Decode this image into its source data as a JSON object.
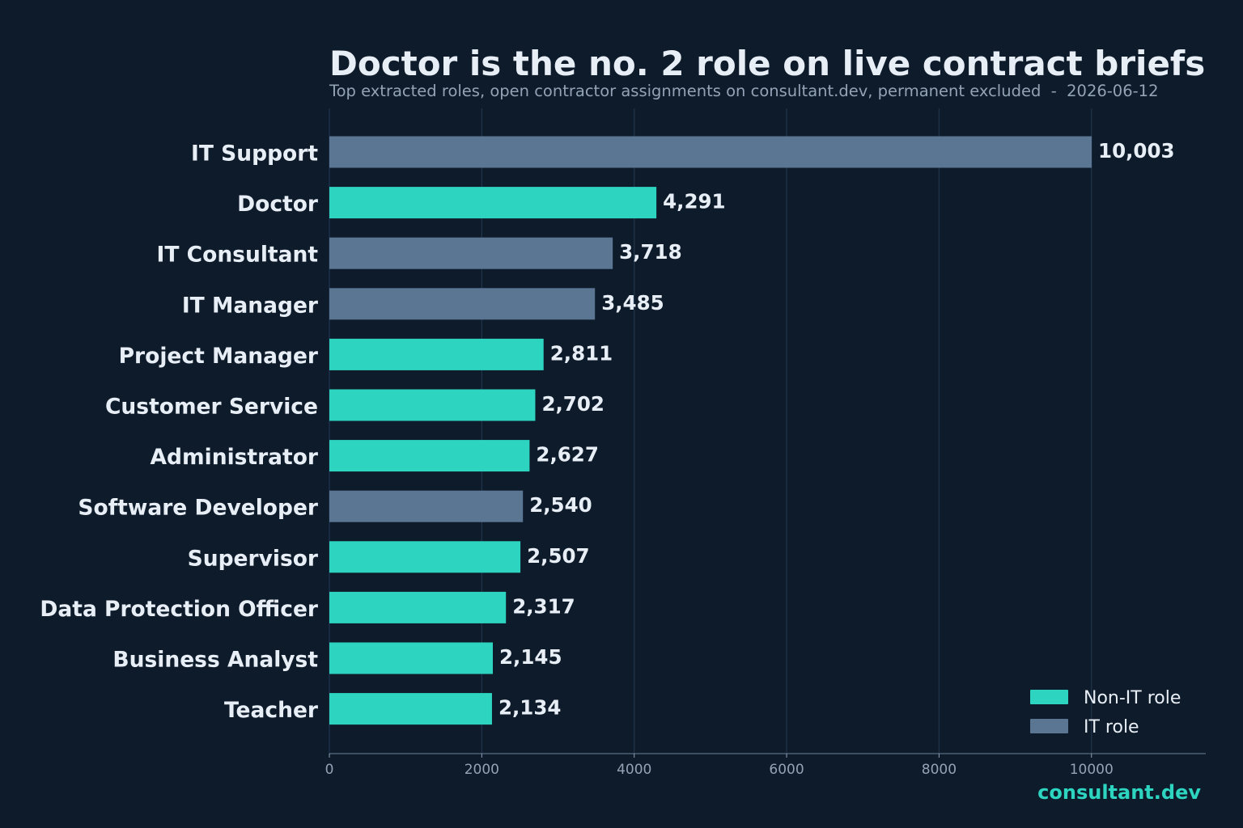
{
  "colors": {
    "background": "#0e1b2b",
    "non_it": "#2dd4bf",
    "it": "#5b7693",
    "title": "#e8eef5",
    "subtitle": "#93a3b5",
    "tick": "#93a3b5",
    "grid": "#1f334a",
    "brand": "#2dd4bf"
  },
  "chart_data": {
    "type": "bar",
    "orientation": "horizontal",
    "title": "Doctor is the no. 2 role on live contract briefs",
    "subtitle": "Top extracted roles, open contractor assignments on consultant.dev, permanent excluded  -  2026-06-12",
    "xlabel": "",
    "ylabel": "",
    "xlim": [
      0,
      11500
    ],
    "xticks": [
      0,
      2000,
      4000,
      6000,
      8000,
      10000
    ],
    "grid": "vertical",
    "legend_position": "bottom-right",
    "categories": [
      "IT Support",
      "Doctor",
      "IT Consultant",
      "IT Manager",
      "Project Manager",
      "Customer Service",
      "Administrator",
      "Software Developer",
      "Supervisor",
      "Data Protection Officer",
      "Business Analyst",
      "Teacher"
    ],
    "values": [
      10003,
      4291,
      3718,
      3485,
      2811,
      2702,
      2627,
      2540,
      2507,
      2317,
      2145,
      2134
    ],
    "value_labels": [
      "10,003",
      "4,291",
      "3,718",
      "3,485",
      "2,811",
      "2,702",
      "2,627",
      "2,540",
      "2,507",
      "2,317",
      "2,145",
      "2,134"
    ],
    "groups": [
      "IT role",
      "Non-IT role",
      "IT role",
      "IT role",
      "Non-IT role",
      "Non-IT role",
      "Non-IT role",
      "IT role",
      "Non-IT role",
      "Non-IT role",
      "Non-IT role",
      "Non-IT role"
    ],
    "legend": [
      {
        "label": "Non-IT role",
        "color": "#2dd4bf"
      },
      {
        "label": "IT role",
        "color": "#5b7693"
      }
    ]
  },
  "brand": "consultant.dev"
}
